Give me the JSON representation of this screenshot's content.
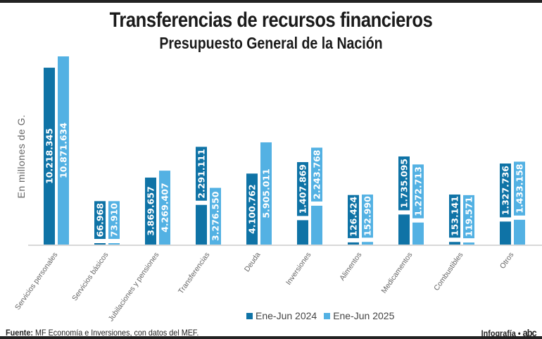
{
  "chart_data": {
    "type": "bar",
    "title": "Transferencias de recursos financieros",
    "subtitle": "Presupuesto General de la Nación",
    "ylabel": "En millones de G.",
    "categories": [
      "Servicios personales",
      "Servicios básicos",
      "Jubilaciones y pensiones",
      "Transferencias",
      "Deuda",
      "Inversiones",
      "Alimentos",
      "Medicamentos",
      "Combustibles",
      "Otros"
    ],
    "series": [
      {
        "name": "Ene-Jun 2024",
        "color": "#0f73a6",
        "values": [
          10218345,
          66968,
          3869657,
          2291111,
          4100762,
          1407869,
          126424,
          1735095,
          153141,
          1327736
        ],
        "labels": [
          "10.218.345",
          "66.968",
          "3.869.657",
          "2.291.111",
          "4.100.762",
          "1.407.869",
          "126.424",
          "1.735.095",
          "153.141",
          "1.327.736"
        ]
      },
      {
        "name": "Ene-Jun 2025",
        "color": "#53b1e3",
        "values": [
          10871634,
          73910,
          4269407,
          3276550,
          5905011,
          2243768,
          152990,
          1272713,
          119571,
          1433158
        ],
        "labels": [
          "10.871.634",
          "73.910",
          "4.269.407",
          "3.276.550",
          "5.905.011",
          "2.243.768",
          "152.990",
          "1.272.713",
          "119.571",
          "1.433.158"
        ]
      }
    ],
    "ylim": [
      0,
      11000000
    ],
    "grid": false,
    "legend": "bottom"
  },
  "footer": {
    "source_label": "Fuente:",
    "source_text": " MF Economía e Inversiones, con datos del MEF.",
    "credit": "Infografía • ",
    "logo": "abc"
  }
}
